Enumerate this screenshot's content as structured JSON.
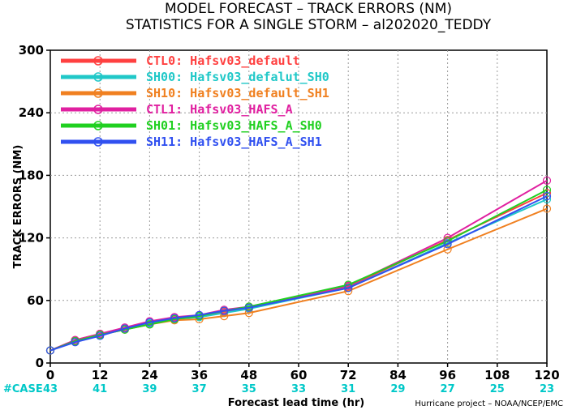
{
  "titles": {
    "line1": "MODEL FORECAST – TRACK ERRORS (NM)",
    "line2": "STATISTICS FOR A SINGLE STORM – al202020_TEDDY"
  },
  "credit": "Hurricane project – NOAA/NCEP/EMC",
  "case_label": "#CASE",
  "case_color": "#00c8c8",
  "chart_data": {
    "type": "line",
    "xlabel": "Forecast lead time (hr)",
    "ylabel": "TRACK ERRORS (NM)",
    "xlim": [
      0,
      120
    ],
    "ylim": [
      0,
      300
    ],
    "xticks": [
      0,
      12,
      24,
      36,
      48,
      60,
      72,
      84,
      96,
      108,
      120
    ],
    "yticks": [
      0,
      60,
      120,
      180,
      240,
      300
    ],
    "grid": true,
    "legend_position": "top-left",
    "x": [
      0,
      6,
      12,
      18,
      24,
      30,
      36,
      42,
      48,
      72,
      96,
      120
    ],
    "cases": [
      "43",
      "41",
      "39",
      "37",
      "35",
      "33",
      "31",
      "29",
      "27",
      "25",
      "23"
    ],
    "series": [
      {
        "name": "CTL0: Hafsv03_default",
        "color": "#ff4040",
        "values": [
          12,
          22,
          28,
          33,
          39,
          43,
          45,
          49,
          53,
          73,
          118,
          163
        ]
      },
      {
        "name": "SH00: Hafsv03_defalut_SH0",
        "color": "#20c8c8",
        "values": [
          12,
          21,
          27,
          33,
          38,
          42,
          44,
          48,
          52,
          72,
          115,
          157
        ]
      },
      {
        "name": "SH10: Hafsv03_default_SH1",
        "color": "#f08020",
        "values": [
          12,
          21,
          27,
          32,
          37,
          41,
          42,
          45,
          48,
          69,
          109,
          148
        ]
      },
      {
        "name": "CTL1: Hafsv03_HAFS_A",
        "color": "#e020a0",
        "values": [
          12,
          22,
          28,
          34,
          40,
          44,
          46,
          51,
          54,
          74,
          120,
          175
        ]
      },
      {
        "name": "SH01: Hafsv03_HAFS_A_SH0",
        "color": "#20d020",
        "values": [
          12,
          21,
          27,
          32,
          37,
          42,
          45,
          50,
          54,
          75,
          117,
          166
        ]
      },
      {
        "name": "SH11: Hafsv03_HAFS_A_SH1",
        "color": "#3050f0",
        "values": [
          12,
          20,
          26,
          33,
          39,
          43,
          46,
          50,
          53,
          72,
          114,
          160
        ]
      }
    ]
  }
}
